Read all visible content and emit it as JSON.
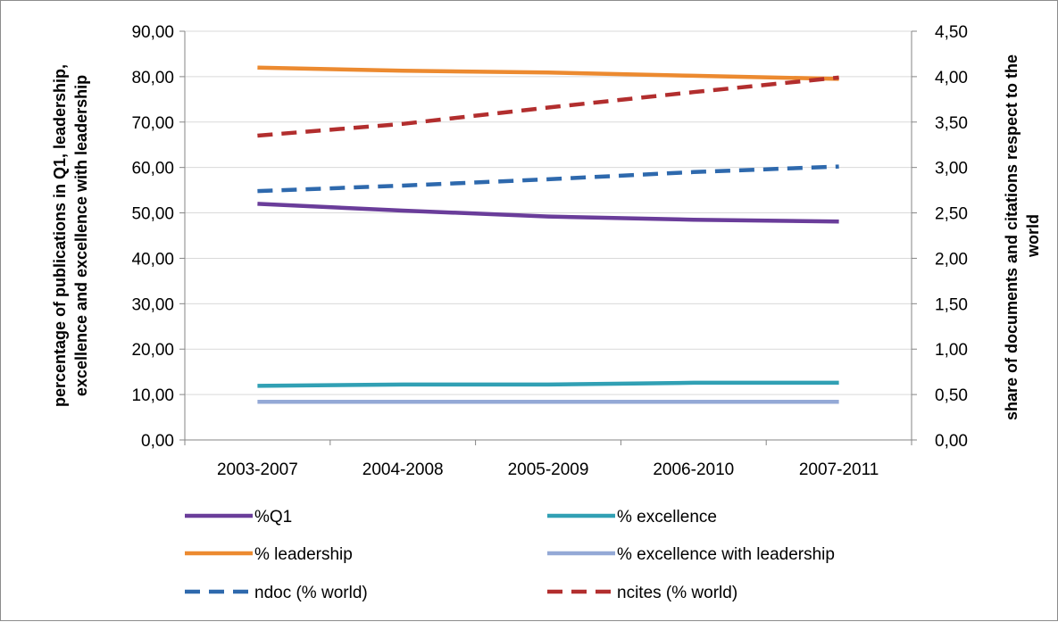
{
  "chart_data": {
    "type": "line",
    "categories": [
      "2003-2007",
      "2004-2008",
      "2005-2009",
      "2006-2010",
      "2007-2011"
    ],
    "y_left": {
      "label_lines": [
        "percentage of publications in Q1, leadership,",
        "excellence and excellence with leadership"
      ],
      "ylim": [
        0,
        90
      ],
      "ticks": [
        "0,00",
        "10,00",
        "20,00",
        "30,00",
        "40,00",
        "50,00",
        "60,00",
        "70,00",
        "80,00",
        "90,00"
      ]
    },
    "y_right": {
      "label_lines": [
        "share of documents and citations respect to the",
        "world"
      ],
      "ylim": [
        0,
        4.5
      ],
      "ticks": [
        "0,00",
        "0,50",
        "1,00",
        "1,50",
        "2,00",
        "2,50",
        "3,00",
        "3,50",
        "4,00",
        "4,50"
      ]
    },
    "grid": "horizontal",
    "legend_position": "bottom",
    "series": [
      {
        "name": "%Q1",
        "axis": "left",
        "style": "solid",
        "color": "#6a3d9a",
        "values": [
          52.0,
          50.5,
          49.2,
          48.5,
          48.1
        ]
      },
      {
        "name": "% excellence",
        "axis": "left",
        "style": "solid",
        "color": "#31a0b4",
        "values": [
          11.9,
          12.2,
          12.2,
          12.6,
          12.6
        ]
      },
      {
        "name": "% leadership",
        "axis": "left",
        "style": "solid",
        "color": "#ec8a30",
        "values": [
          82.0,
          81.3,
          80.9,
          80.2,
          79.5
        ]
      },
      {
        "name": "% excellence with leadership",
        "axis": "left",
        "style": "solid",
        "color": "#94a9d6",
        "values": [
          8.4,
          8.4,
          8.4,
          8.4,
          8.4
        ]
      },
      {
        "name": "ndoc (% world)",
        "axis": "right",
        "style": "dashed",
        "color": "#2e69ad",
        "values": [
          2.74,
          2.8,
          2.87,
          2.95,
          3.01
        ]
      },
      {
        "name": "ncites (% world)",
        "axis": "right",
        "style": "dashed",
        "color": "#b22e2e",
        "values": [
          3.35,
          3.48,
          3.66,
          3.83,
          3.99
        ]
      }
    ]
  }
}
